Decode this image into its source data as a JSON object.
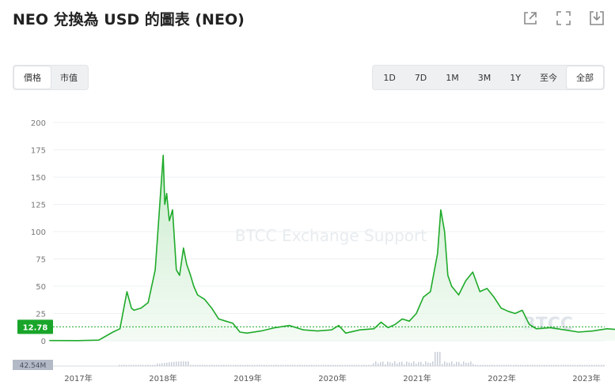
{
  "header": {
    "title": "NEO 兌換為 USD 的圖表 (NEO)"
  },
  "toolbar_icons": [
    "share-icon",
    "fullscreen-icon",
    "download-icon"
  ],
  "metric_tabs": [
    {
      "label": "價格",
      "active": true
    },
    {
      "label": "市值",
      "active": false
    }
  ],
  "range_tabs": [
    {
      "label": "1D",
      "active": false
    },
    {
      "label": "7D",
      "active": false
    },
    {
      "label": "1M",
      "active": false
    },
    {
      "label": "3M",
      "active": false
    },
    {
      "label": "1Y",
      "active": false
    },
    {
      "label": "至今",
      "active": false
    },
    {
      "label": "全部",
      "active": true
    }
  ],
  "watermark": "BTCC Exchange Support",
  "brand_watermark": "BTCC",
  "colors": {
    "line": "#1faa2a",
    "area": "#e8f6e9",
    "current_price_bg": "#19a52a",
    "volume": "#c9ced8"
  },
  "chart_data": {
    "type": "area",
    "title": "",
    "xlabel": "",
    "ylabel": "",
    "ylim": [
      0,
      200
    ],
    "y_ticks": [
      0,
      25,
      50,
      75,
      100,
      125,
      150,
      175,
      200
    ],
    "x_ticks": [
      "2017年",
      "2018年",
      "2019年",
      "2020年",
      "2021年",
      "2022年",
      "2023年"
    ],
    "grid": true,
    "current_price_label": "12.78",
    "volume_label": "42.54M",
    "series": [
      {
        "values": [
          [
            "2016-09",
            0.2
          ],
          [
            "2017-01",
            0.15
          ],
          [
            "2017-04",
            0.6
          ],
          [
            "2017-06",
            8
          ],
          [
            "2017-07",
            11
          ],
          [
            "2017-08",
            45
          ],
          [
            "2017-08-20",
            30
          ],
          [
            "2017-09",
            28
          ],
          [
            "2017-10",
            30
          ],
          [
            "2017-11",
            35
          ],
          [
            "2017-12",
            65
          ],
          [
            "2018-01-05",
            170
          ],
          [
            "2018-01-12",
            125
          ],
          [
            "2018-01-20",
            135
          ],
          [
            "2018-02",
            110
          ],
          [
            "2018-02-15",
            120
          ],
          [
            "2018-03",
            65
          ],
          [
            "2018-03-15",
            60
          ],
          [
            "2018-04",
            85
          ],
          [
            "2018-04-15",
            70
          ],
          [
            "2018-05",
            60
          ],
          [
            "2018-05-15",
            50
          ],
          [
            "2018-06",
            42
          ],
          [
            "2018-07",
            38
          ],
          [
            "2018-08",
            30
          ],
          [
            "2018-09",
            20
          ],
          [
            "2018-10",
            18
          ],
          [
            "2018-11",
            16
          ],
          [
            "2018-12",
            8
          ],
          [
            "2019-01",
            7
          ],
          [
            "2019-03",
            9
          ],
          [
            "2019-05",
            12
          ],
          [
            "2019-07",
            14
          ],
          [
            "2019-09",
            10
          ],
          [
            "2019-11",
            9
          ],
          [
            "2020-01",
            10
          ],
          [
            "2020-02",
            14
          ],
          [
            "2020-03",
            7
          ],
          [
            "2020-05",
            10
          ],
          [
            "2020-07",
            11
          ],
          [
            "2020-08",
            17
          ],
          [
            "2020-09",
            12
          ],
          [
            "2020-10",
            15
          ],
          [
            "2020-11",
            20
          ],
          [
            "2020-12",
            18
          ],
          [
            "2021-01",
            25
          ],
          [
            "2021-02",
            40
          ],
          [
            "2021-03",
            45
          ],
          [
            "2021-04",
            80
          ],
          [
            "2021-04-15",
            120
          ],
          [
            "2021-05",
            100
          ],
          [
            "2021-05-15",
            60
          ],
          [
            "2021-06",
            50
          ],
          [
            "2021-07",
            42
          ],
          [
            "2021-08",
            55
          ],
          [
            "2021-09",
            63
          ],
          [
            "2021-10",
            45
          ],
          [
            "2021-11",
            48
          ],
          [
            "2021-12",
            40
          ],
          [
            "2022-01",
            30
          ],
          [
            "2022-02",
            27
          ],
          [
            "2022-03",
            25
          ],
          [
            "2022-04",
            28
          ],
          [
            "2022-05",
            15
          ],
          [
            "2022-06",
            11
          ],
          [
            "2022-08",
            12
          ],
          [
            "2022-10",
            10
          ],
          [
            "2022-12",
            8
          ],
          [
            "2023-02",
            9
          ],
          [
            "2023-04",
            11
          ],
          [
            "2023-06",
            10
          ],
          [
            "2023-07",
            13
          ],
          [
            "2023-08",
            12.78
          ]
        ]
      }
    ]
  }
}
